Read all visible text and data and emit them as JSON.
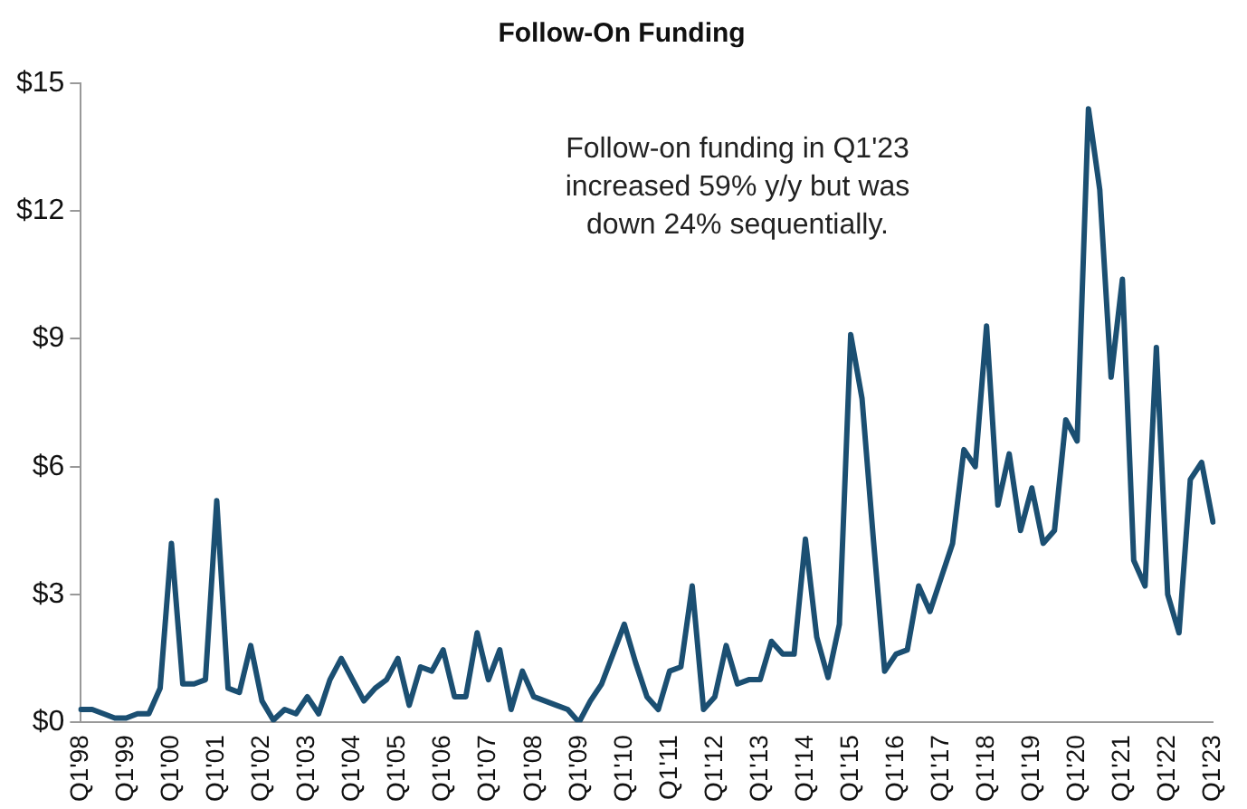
{
  "chart_data": {
    "type": "line",
    "title": "Follow-On Funding",
    "categories": [
      "Q1'98",
      null,
      null,
      null,
      "Q1'99",
      null,
      null,
      null,
      "Q1'00",
      null,
      null,
      null,
      "Q1'01",
      null,
      null,
      null,
      "Q1'02",
      null,
      null,
      null,
      "Q1'03",
      null,
      null,
      null,
      "Q1'04",
      null,
      null,
      null,
      "Q1'05",
      null,
      null,
      null,
      "Q1'06",
      null,
      null,
      null,
      "Q1'07",
      null,
      null,
      null,
      "Q1'08",
      null,
      null,
      null,
      "Q1'09",
      null,
      null,
      null,
      "Q1'10",
      null,
      null,
      null,
      "Q1'11",
      null,
      null,
      null,
      "Q1'12",
      null,
      null,
      null,
      "Q1'13",
      null,
      null,
      null,
      "Q1'14",
      null,
      null,
      null,
      "Q1'15",
      null,
      null,
      null,
      "Q1'16",
      null,
      null,
      null,
      "Q1'17",
      null,
      null,
      null,
      "Q1'18",
      null,
      null,
      null,
      "Q1'19",
      null,
      null,
      null,
      "Q1'20",
      null,
      null,
      null,
      "Q1'21",
      null,
      null,
      null,
      "Q1'22",
      null,
      null,
      null,
      "Q1'23"
    ],
    "series": [
      {
        "color": "#1b4f72",
        "values": [
          0.3,
          0.3,
          0.2,
          0.1,
          0.1,
          0.2,
          0.2,
          0.8,
          4.2,
          0.9,
          0.9,
          1.0,
          5.2,
          0.8,
          0.7,
          1.8,
          0.5,
          0.05,
          0.3,
          0.2,
          0.6,
          0.2,
          1.0,
          1.5,
          1.0,
          0.5,
          0.8,
          1.0,
          1.5,
          0.4,
          1.3,
          1.2,
          1.7,
          0.6,
          0.6,
          2.1,
          1.0,
          1.7,
          0.3,
          1.2,
          0.6,
          0.5,
          0.4,
          0.3,
          0.0,
          0.5,
          0.9,
          1.6,
          2.3,
          1.4,
          0.6,
          0.3,
          1.2,
          1.3,
          3.2,
          0.3,
          0.6,
          1.8,
          0.9,
          1.0,
          1.0,
          1.9,
          1.6,
          1.6,
          4.3,
          2.0,
          1.05,
          2.3,
          9.1,
          7.6,
          4.3,
          1.2,
          1.6,
          1.7,
          3.2,
          2.6,
          3.4,
          4.2,
          6.4,
          6.0,
          9.3,
          5.1,
          6.3,
          4.5,
          5.5,
          4.2,
          4.5,
          7.1,
          6.6,
          14.4,
          12.5,
          8.1,
          10.4,
          3.8,
          3.2,
          8.8,
          3.0,
          2.1,
          5.7,
          6.1,
          4.7
        ]
      }
    ],
    "ylim": [
      0,
      15
    ],
    "yticks": [
      {
        "value": 0,
        "label": "$0"
      },
      {
        "value": 3,
        "label": "$3"
      },
      {
        "value": 6,
        "label": "$6"
      },
      {
        "value": 9,
        "label": "$9"
      },
      {
        "value": 12,
        "label": "$12"
      },
      {
        "value": 15,
        "label": "$15"
      }
    ],
    "annotations": [
      "Follow-on funding in Q1'23 increased 59% y/y but was down 24% sequentially."
    ],
    "grid": false,
    "legend": false,
    "marker": "none",
    "line_style": "solid"
  }
}
